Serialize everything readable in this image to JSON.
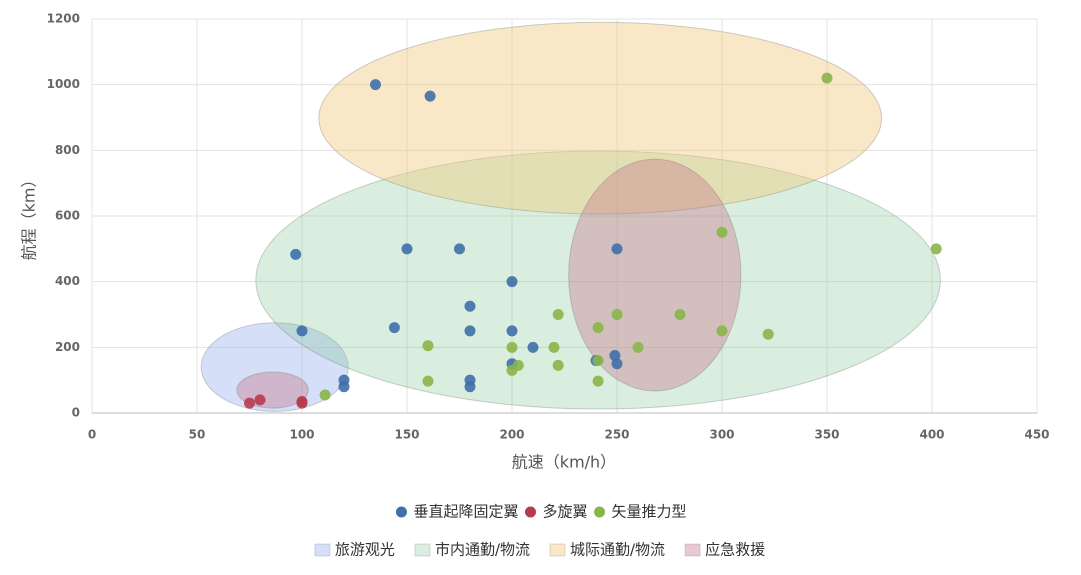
{
  "chart_data": {
    "type": "scatter",
    "x_label": "航速（km/h）",
    "y_label": "航程（km）",
    "xlim": [
      0,
      450
    ],
    "xticks": [
      0,
      50,
      100,
      150,
      200,
      250,
      300,
      350,
      400,
      450
    ],
    "ylim": [
      0,
      1200
    ],
    "yticks": [
      0,
      200,
      400,
      600,
      800,
      1000,
      1200
    ],
    "grid": true,
    "regions": [
      {
        "name": "旅游观光",
        "color": "rgba(150,175,235,0.4)",
        "ellipses": [
          {
            "cx": 87,
            "cy": 140,
            "rx": 35,
            "ry": 135
          }
        ]
      },
      {
        "name": "市内通勤/物流",
        "color": "rgba(130,200,150,0.3)",
        "ellipses": [
          {
            "cx": 241,
            "cy": 405,
            "rx": 163,
            "ry": 393
          }
        ]
      },
      {
        "name": "城际通勤/物流",
        "color": "rgba(240,205,130,0.45)",
        "ellipses": [
          {
            "cx": 242,
            "cy": 898,
            "rx": 134,
            "ry": 292
          }
        ]
      },
      {
        "name": "应急救援",
        "color": "rgba(200,120,140,0.4)",
        "ellipses": [
          {
            "cx": 268,
            "cy": 420,
            "rx": 41,
            "ry": 353
          },
          {
            "cx": 86,
            "cy": 70,
            "rx": 17,
            "ry": 55
          }
        ]
      }
    ],
    "series": [
      {
        "name": "垂直起降固定翼",
        "color": "#3f6fa8",
        "x": [
          135,
          161,
          97,
          150,
          175,
          200,
          250,
          100,
          144,
          180,
          180,
          200,
          200,
          210,
          240,
          249,
          250,
          120,
          120,
          180,
          180
        ],
        "values": [
          1000,
          965,
          483,
          500,
          500,
          400,
          500,
          250,
          260,
          325,
          250,
          250,
          150,
          200,
          160,
          175,
          150,
          100,
          80,
          100,
          80
        ]
      },
      {
        "name": "多旋翼",
        "color": "#b83a4c",
        "x": [
          75,
          80,
          100,
          100
        ],
        "values": [
          30,
          40,
          35,
          30
        ]
      },
      {
        "name": "矢量推力型",
        "color": "#8ab548",
        "x": [
          350,
          402,
          300,
          222,
          250,
          280,
          241,
          300,
          322,
          160,
          200,
          220,
          260,
          241,
          203,
          222,
          200,
          160,
          241,
          111
        ],
        "values": [
          1020,
          500,
          550,
          300,
          300,
          300,
          260,
          250,
          240,
          205,
          200,
          200,
          200,
          160,
          145,
          145,
          130,
          97,
          97,
          55
        ]
      }
    ]
  }
}
